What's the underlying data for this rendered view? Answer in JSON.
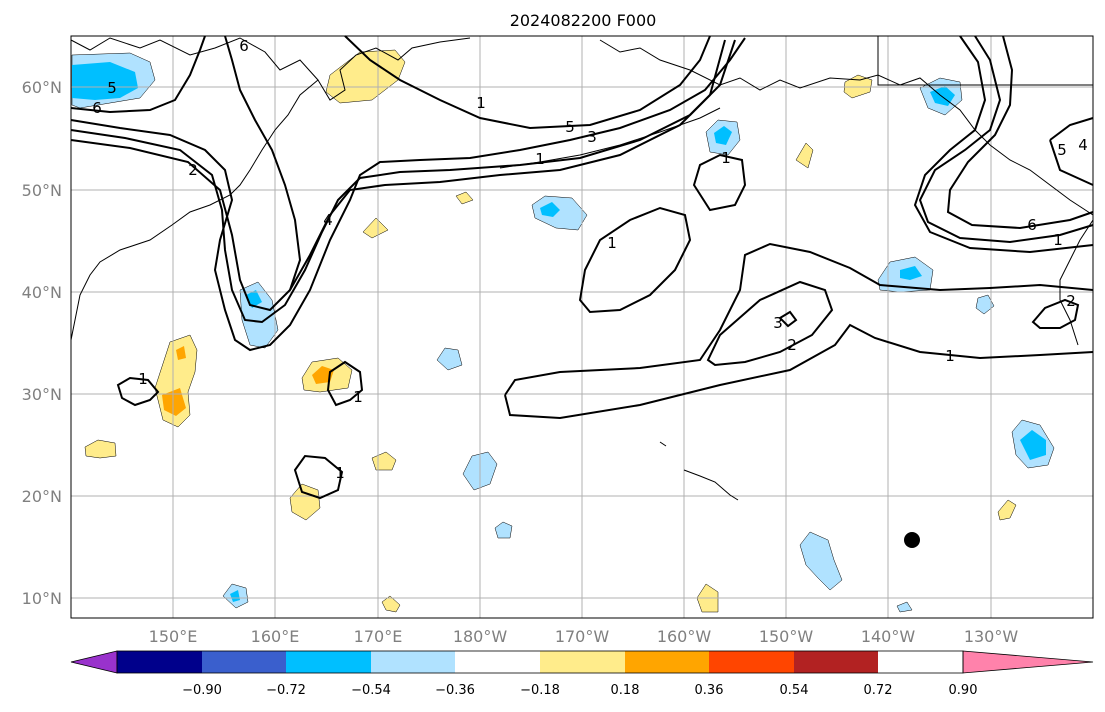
{
  "title": "2024082200 F000",
  "lat_labels": [
    "60°N",
    "50°N",
    "40°N",
    "30°N",
    "20°N",
    "10°N"
  ],
  "lon_labels": [
    "150°E",
    "160°E",
    "170°E",
    "180°W",
    "170°W",
    "160°W",
    "150°W",
    "140°W",
    "130°W"
  ],
  "contour_labels": [
    "6",
    "5",
    "6",
    "5",
    "3",
    "1",
    "2",
    "1",
    "4",
    "1",
    "1",
    "3",
    "2",
    "1",
    "1",
    "1",
    "1",
    "6",
    "1",
    "5",
    "4",
    "2"
  ],
  "colorbar": {
    "ticks": [
      "−0.90",
      "−0.72",
      "−0.54",
      "−0.36",
      "−0.18",
      "0.18",
      "0.36",
      "0.54",
      "0.72",
      "0.90"
    ],
    "colors": [
      "#9932cc",
      "#00008b",
      "#3a5fcd",
      "#00bfff",
      "#b0e2ff",
      "#ffffff",
      "#ffec8b",
      "#ffa500",
      "#ff4500",
      "#b22222",
      "#ff82ab"
    ]
  },
  "fill_colors": {
    "light_blue": "#b0e2ff",
    "blue": "#00bfff",
    "light_yellow": "#ffec8b",
    "orange": "#ffa500"
  },
  "marker_color": "#000000"
}
